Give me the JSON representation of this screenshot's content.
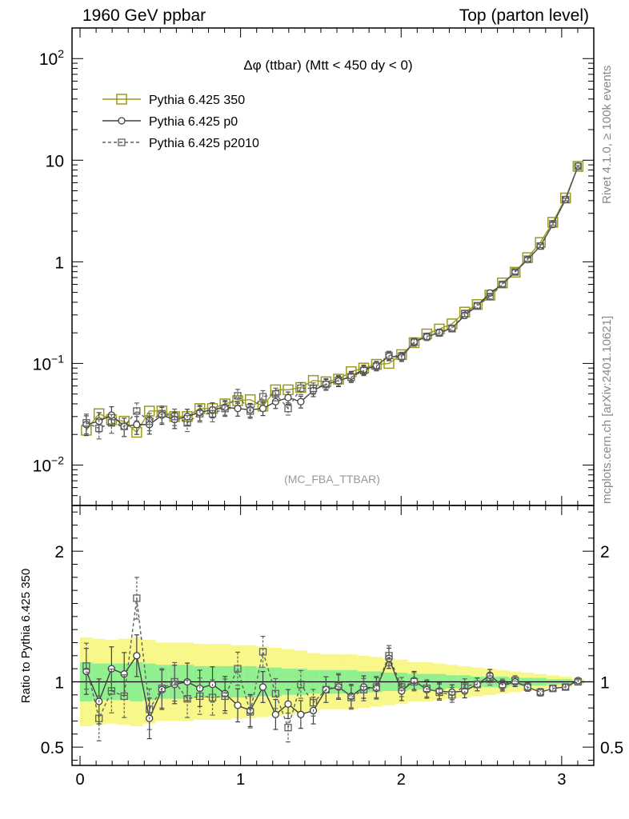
{
  "header": {
    "left": "1960 GeV ppbar",
    "right": "Top (parton level)"
  },
  "side_labels": {
    "rivet": "Rivet 4.1.0, ≥ 100k events",
    "mcplots": "mcplots.cern.ch [arXiv:2401.10621]"
  },
  "colors": {
    "p350": "#9a9a1e",
    "p0": "#404040",
    "p2010": "#606060",
    "band_inner": "#90f090",
    "band_outer": "#f7f78a"
  },
  "chart_data": {
    "type": "line",
    "title": "Δφ (ttbar) (Mtt < 450 dy < 0)",
    "watermark": "(MC_FBA_TTBAR)",
    "xlabel": "",
    "ylabel": "",
    "ratio_ylabel": "Ratio to Pythia 6.425 350",
    "xlim": [
      -0.05,
      3.2
    ],
    "ylim": [
      0.004,
      200
    ],
    "yscale": "log",
    "ratio_ylim": [
      0.36,
      2.35
    ],
    "x_ticks": [
      "0",
      "1",
      "2",
      "3"
    ],
    "y_ticks": [
      "10^-2",
      "10^-1",
      "1",
      "10",
      "10^2"
    ],
    "ratio_ticks": [
      "0.5",
      "1",
      "2"
    ],
    "x": [
      0.039,
      0.118,
      0.196,
      0.275,
      0.353,
      0.432,
      0.51,
      0.589,
      0.668,
      0.746,
      0.825,
      0.903,
      0.982,
      1.06,
      1.139,
      1.218,
      1.296,
      1.375,
      1.453,
      1.532,
      1.61,
      1.689,
      1.767,
      1.846,
      1.924,
      2.003,
      2.081,
      2.16,
      2.238,
      2.317,
      2.396,
      2.474,
      2.553,
      2.631,
      2.71,
      2.788,
      2.867,
      2.945,
      3.024,
      3.102
    ],
    "series": [
      {
        "name": "Pythia 6.425 350",
        "marker": "square-open-large",
        "style": "solid",
        "values": [
          0.022,
          0.032,
          0.028,
          0.027,
          0.021,
          0.034,
          0.034,
          0.03,
          0.03,
          0.036,
          0.036,
          0.04,
          0.043,
          0.044,
          0.038,
          0.055,
          0.055,
          0.058,
          0.068,
          0.066,
          0.07,
          0.083,
          0.09,
          0.098,
          0.1,
          0.122,
          0.16,
          0.195,
          0.218,
          0.245,
          0.32,
          0.38,
          0.47,
          0.62,
          0.79,
          1.1,
          1.55,
          2.45,
          4.25,
          8.7
        ]
      },
      {
        "name": "Pythia 6.425 p0",
        "marker": "circle-open",
        "style": "solid",
        "values": [
          0.025,
          0.027,
          0.031,
          0.024,
          0.025,
          0.025,
          0.031,
          0.028,
          0.03,
          0.033,
          0.035,
          0.037,
          0.036,
          0.035,
          0.036,
          0.042,
          0.046,
          0.042,
          0.054,
          0.063,
          0.067,
          0.075,
          0.087,
          0.095,
          0.118,
          0.115,
          0.163,
          0.183,
          0.202,
          0.222,
          0.297,
          0.37,
          0.493,
          0.6,
          0.795,
          1.05,
          1.43,
          2.33,
          4.1,
          8.8
        ]
      },
      {
        "name": "Pythia 6.425 p2010",
        "marker": "square-open-small",
        "style": "dashed",
        "values": [
          0.026,
          0.023,
          0.026,
          0.024,
          0.034,
          0.027,
          0.032,
          0.03,
          0.026,
          0.032,
          0.032,
          0.036,
          0.048,
          0.034,
          0.047,
          0.05,
          0.036,
          0.057,
          0.057,
          0.062,
          0.068,
          0.073,
          0.085,
          0.094,
          0.12,
          0.118,
          0.162,
          0.184,
          0.2,
          0.22,
          0.31,
          0.37,
          0.455,
          0.6,
          0.795,
          1.06,
          1.43,
          2.37,
          4.1,
          8.7
        ]
      }
    ],
    "ratio_series": [
      {
        "name": "Pythia 6.425 p0",
        "values": [
          1.08,
          0.85,
          1.1,
          1.06,
          1.2,
          0.72,
          0.94,
          0.98,
          1.0,
          0.95,
          0.98,
          0.91,
          0.82,
          0.78,
          0.96,
          0.75,
          0.83,
          0.75,
          0.78,
          0.94,
          0.96,
          0.89,
          0.96,
          0.95,
          1.18,
          0.93,
          1.01,
          0.94,
          0.93,
          0.92,
          0.93,
          0.98,
          1.05,
          0.97,
          1.0,
          0.96,
          0.92,
          0.95,
          0.96,
          1.01
        ]
      },
      {
        "name": "Pythia 6.425 p2010",
        "values": [
          1.12,
          0.72,
          0.93,
          0.89,
          1.64,
          0.79,
          0.95,
          1.0,
          0.87,
          0.89,
          0.88,
          0.89,
          1.1,
          0.77,
          1.23,
          0.91,
          0.65,
          0.98,
          0.84,
          0.94,
          0.97,
          0.88,
          0.94,
          0.96,
          1.2,
          0.96,
          1.0,
          0.95,
          0.92,
          0.9,
          0.97,
          0.98,
          1.02,
          0.98,
          1.01,
          0.96,
          0.92,
          0.95,
          0.96,
          1.0
        ]
      }
    ],
    "band_outer_halfwidth": [
      0.34,
      0.33,
      0.32,
      0.33,
      0.34,
      0.32,
      0.3,
      0.3,
      0.3,
      0.29,
      0.29,
      0.29,
      0.28,
      0.28,
      0.27,
      0.26,
      0.25,
      0.24,
      0.22,
      0.21,
      0.21,
      0.21,
      0.2,
      0.19,
      0.18,
      0.17,
      0.15,
      0.15,
      0.14,
      0.13,
      0.12,
      0.11,
      0.1,
      0.09,
      0.08,
      0.07,
      0.06,
      0.05,
      0.04,
      0.02
    ],
    "band_inner_halfwidth": [
      0.15,
      0.14,
      0.14,
      0.14,
      0.15,
      0.14,
      0.13,
      0.13,
      0.13,
      0.12,
      0.12,
      0.12,
      0.12,
      0.12,
      0.11,
      0.11,
      0.1,
      0.1,
      0.09,
      0.09,
      0.09,
      0.09,
      0.08,
      0.08,
      0.07,
      0.07,
      0.06,
      0.06,
      0.06,
      0.05,
      0.05,
      0.04,
      0.04,
      0.04,
      0.03,
      0.03,
      0.03,
      0.02,
      0.02,
      0.01
    ]
  }
}
